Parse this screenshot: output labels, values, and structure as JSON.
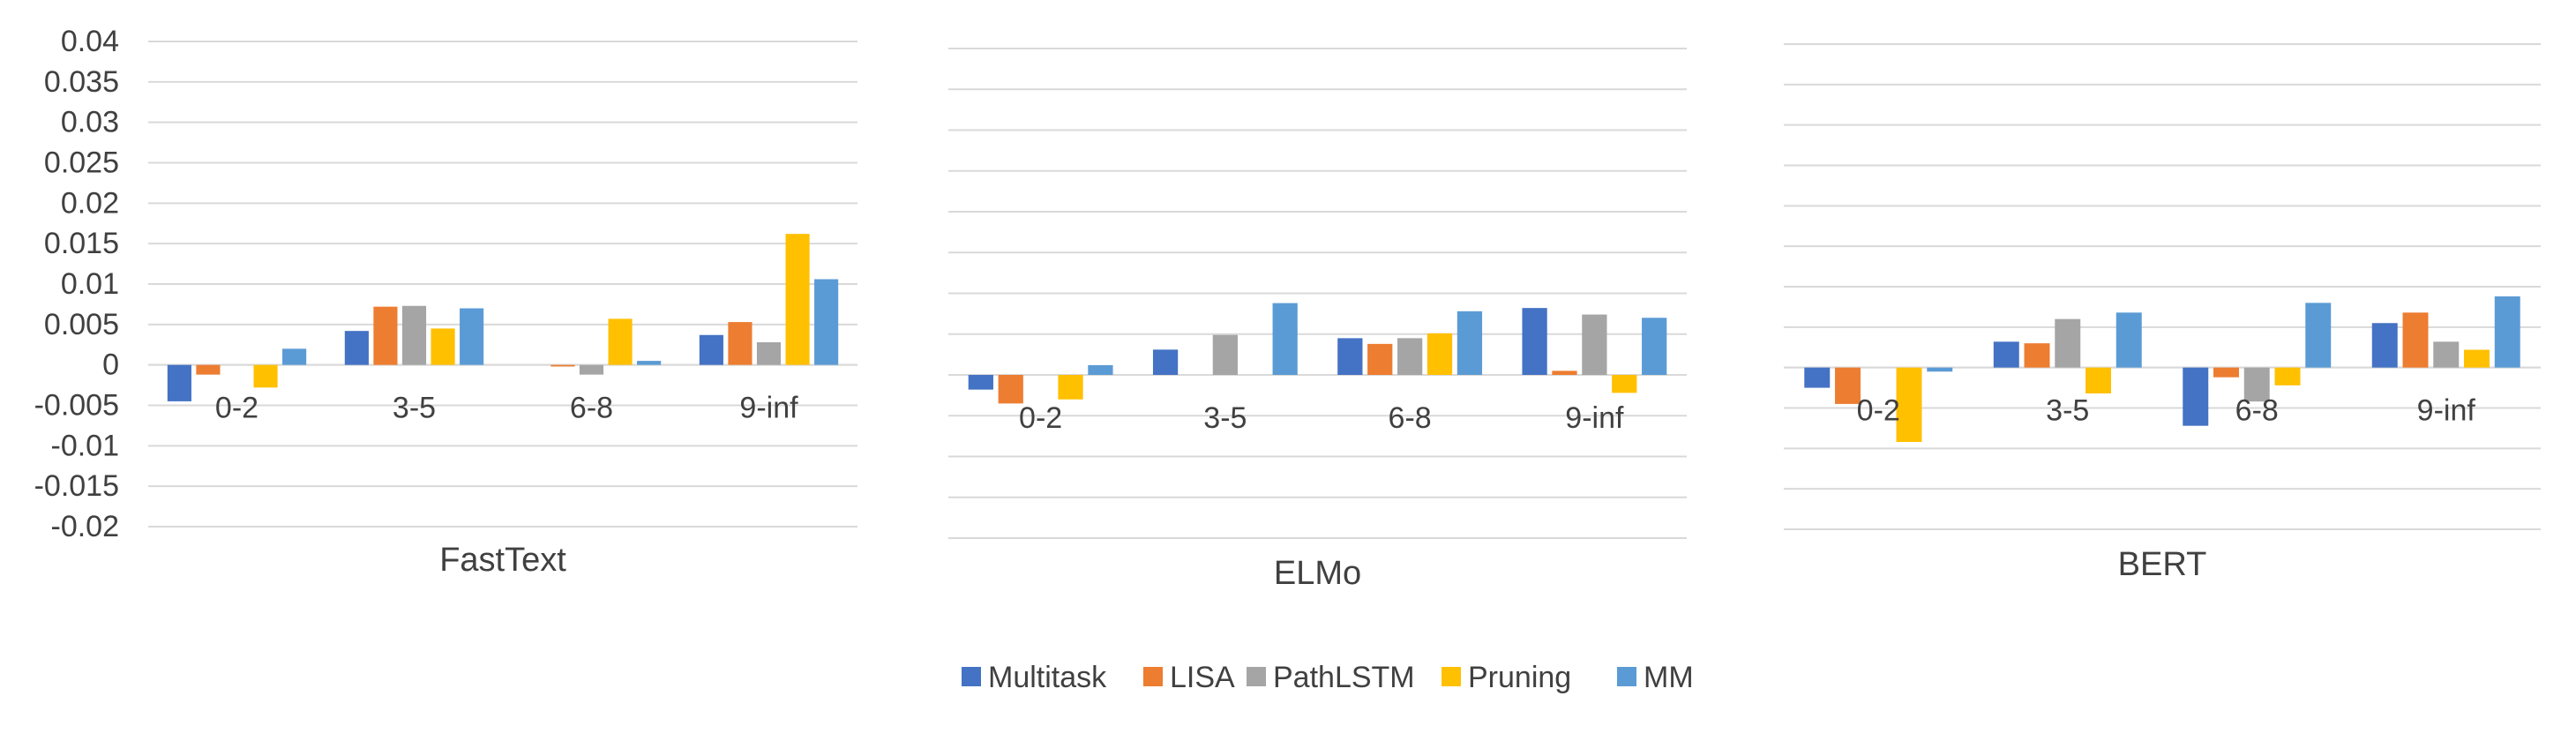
{
  "chart_data": {
    "type": "bar",
    "ylim": [
      -0.02,
      0.04
    ],
    "yticks": [
      "0.04",
      "0.035",
      "0.03",
      "0.025",
      "0.02",
      "0.015",
      "0.01",
      "0.005",
      "0",
      "-0.005",
      "-0.01",
      "-0.015",
      "-0.02"
    ],
    "categories": [
      "0-2",
      "3-5",
      "6-8",
      "9-inf"
    ],
    "series_names": [
      "Multitask",
      "LISA",
      "PathLSTM",
      "Pruning",
      "MM"
    ],
    "colors": [
      "#4472C4",
      "#ED7D31",
      "#A5A5A5",
      "#FFC000",
      "#5B9BD5"
    ],
    "legend_position": "bottom",
    "grid": true,
    "panels": [
      {
        "title": "FastText",
        "series": [
          {
            "name": "Multitask",
            "values": [
              -0.0045,
              0.0042,
              0.0,
              0.0037
            ]
          },
          {
            "name": "LISA",
            "values": [
              -0.0012,
              0.0072,
              -0.0002,
              0.0053
            ]
          },
          {
            "name": "PathLSTM",
            "values": [
              0.0,
              0.0073,
              -0.0012,
              0.0028
            ]
          },
          {
            "name": "Pruning",
            "values": [
              -0.0028,
              0.0045,
              0.0057,
              0.0162
            ]
          },
          {
            "name": "MM",
            "values": [
              0.002,
              0.007,
              0.0005,
              0.0106
            ]
          }
        ]
      },
      {
        "title": "ELMo",
        "series": [
          {
            "name": "Multitask",
            "values": [
              -0.0018,
              0.0031,
              0.0045,
              0.0082
            ]
          },
          {
            "name": "LISA",
            "values": [
              -0.0035,
              0.0,
              0.0038,
              0.0005
            ]
          },
          {
            "name": "PathLSTM",
            "values": [
              0.0,
              0.0049,
              0.0045,
              0.0074
            ]
          },
          {
            "name": "Pruning",
            "values": [
              -0.003,
              0.0,
              0.0051,
              -0.0022
            ]
          },
          {
            "name": "MM",
            "values": [
              0.0012,
              0.0088,
              0.0078,
              0.007
            ]
          }
        ]
      },
      {
        "title": "BERT",
        "series": [
          {
            "name": "Multitask",
            "values": [
              -0.0025,
              0.0032,
              -0.0072,
              0.0055
            ]
          },
          {
            "name": "LISA",
            "values": [
              -0.0045,
              0.003,
              -0.0012,
              0.0068
            ]
          },
          {
            "name": "PathLSTM",
            "values": [
              0.0,
              0.006,
              -0.0042,
              0.0032
            ]
          },
          {
            "name": "Pruning",
            "values": [
              -0.0092,
              -0.0032,
              -0.0022,
              0.0022
            ]
          },
          {
            "name": "MM",
            "values": [
              -0.0005,
              0.0068,
              0.008,
              0.0088
            ]
          }
        ]
      }
    ]
  }
}
